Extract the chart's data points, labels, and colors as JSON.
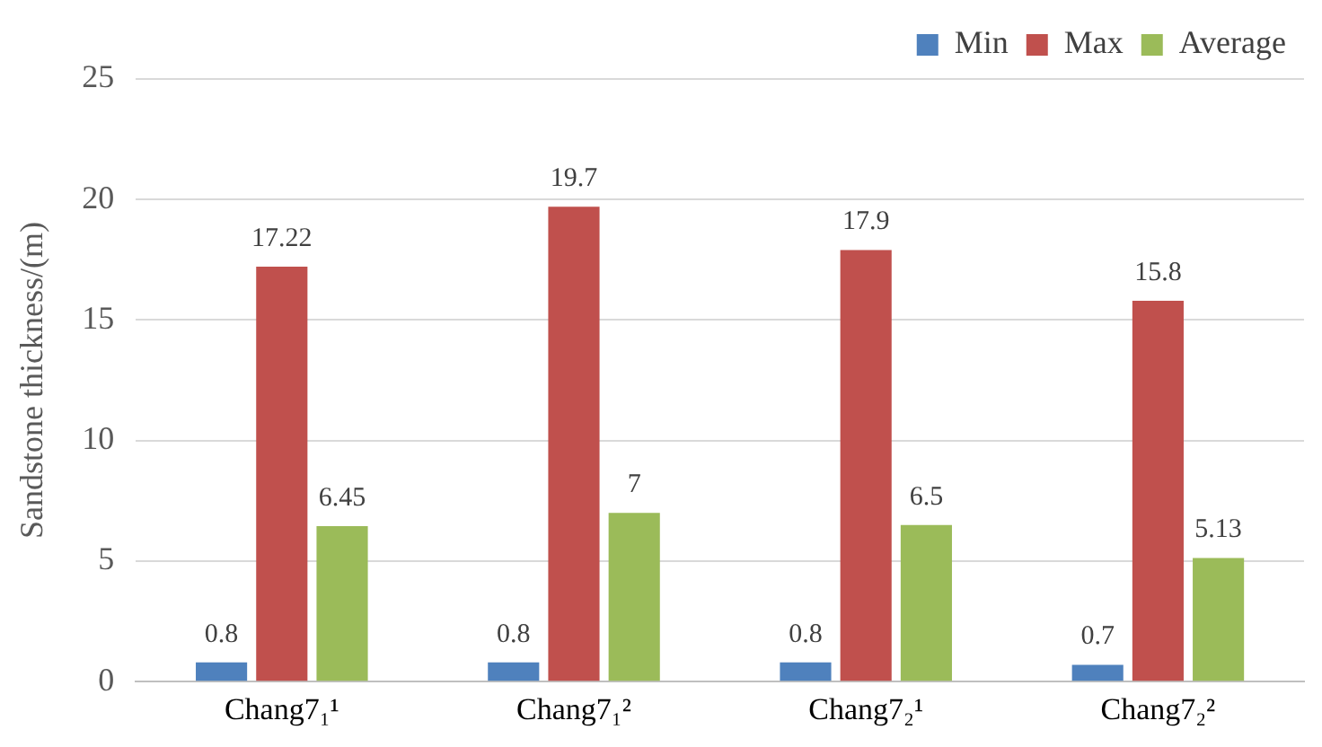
{
  "chart_data": {
    "type": "bar",
    "ylabel": "Sandstone thickness/(m)",
    "categories": [
      "Chang7₁¹",
      "Chang7₁²",
      "Chang7₂¹",
      "Chang7₂²"
    ],
    "series": [
      {
        "name": "Min",
        "color": "#4f81bd",
        "values": [
          0.8,
          0.8,
          0.8,
          0.7
        ]
      },
      {
        "name": "Max",
        "color": "#c0504d",
        "values": [
          17.22,
          19.7,
          17.9,
          15.8
        ]
      },
      {
        "name": "Average",
        "color": "#9bbb59",
        "values": [
          6.45,
          7,
          6.5,
          5.13
        ]
      }
    ],
    "ylim": [
      0,
      25
    ],
    "yticks": [
      0,
      5,
      10,
      15,
      20,
      25
    ],
    "grid": "y",
    "legend": "top right",
    "data_labels": true
  }
}
